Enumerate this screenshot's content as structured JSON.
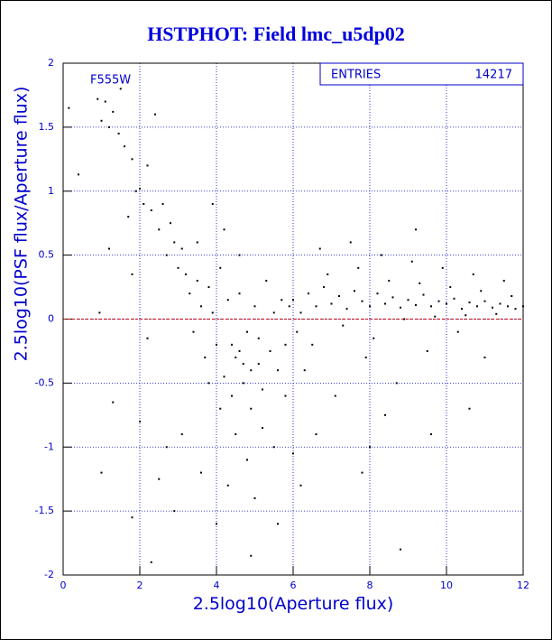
{
  "chart_data": {
    "type": "scatter",
    "title": "HSTPHOT: Field lmc_u5dp02",
    "xlabel": "2.5log10(Aperture flux)",
    "ylabel": "2.5log10(PSF flux/Aperture flux)",
    "annotation": "F555W",
    "stats": {
      "label": "ENTRIES",
      "value": 14217
    },
    "color": "#000000",
    "hline": 0,
    "hline_color": "#cc0000",
    "xlim": [
      0,
      12
    ],
    "ylim": [
      -2,
      2
    ],
    "xticks": [
      0,
      2,
      4,
      6,
      8,
      10,
      12
    ],
    "yticks": [
      -2,
      -1.5,
      -1,
      -0.5,
      0,
      0.5,
      1,
      1.5,
      2
    ],
    "grid": true,
    "x": [
      0.15,
      0.4,
      0.9,
      1.0,
      1.1,
      1.2,
      1.3,
      1.45,
      1.5,
      1.6,
      1.7,
      1.8,
      1.9,
      2.0,
      2.1,
      2.2,
      2.3,
      2.4,
      2.5,
      2.6,
      2.7,
      2.8,
      2.9,
      3.0,
      3.1,
      3.2,
      0.95,
      1.2,
      1.8,
      2.2,
      1.3,
      2.5,
      2.7,
      3.1,
      2.0,
      1.0,
      2.9,
      2.3,
      1.8,
      3.3,
      3.4,
      3.5,
      3.6,
      3.7,
      3.8,
      3.9,
      4.0,
      4.1,
      4.2,
      4.3,
      4.4,
      4.5,
      4.6,
      4.7,
      4.8,
      4.9,
      5.0,
      5.1,
      5.2,
      5.3,
      5.4,
      5.5,
      5.6,
      5.7,
      5.8,
      5.9,
      4.5,
      4.8,
      5.2,
      5.5,
      4.3,
      4.0,
      5.0,
      3.6,
      4.6,
      4.2,
      3.9,
      3.5,
      4.4,
      4.6,
      4.7,
      4.9,
      5.1,
      3.8,
      4.1,
      5.8,
      6.0,
      5.6,
      4.9,
      6.0,
      6.2,
      6.4,
      6.6,
      6.8,
      7.0,
      7.2,
      7.4,
      7.6,
      7.8,
      8.0,
      8.2,
      8.4,
      8.6,
      8.8,
      9.0,
      9.2,
      9.4,
      9.6,
      9.8,
      10.0,
      10.2,
      10.4,
      10.6,
      10.8,
      11.0,
      11.2,
      11.4,
      11.6,
      11.8,
      6.1,
      6.5,
      6.9,
      7.3,
      7.7,
      8.1,
      8.5,
      8.9,
      9.3,
      9.7,
      10.1,
      10.5,
      10.9,
      11.3,
      11.7,
      6.3,
      7.1,
      7.9,
      8.7,
      9.5,
      10.3,
      6.7,
      7.5,
      8.3,
      9.1,
      9.9,
      10.7,
      6.2,
      7.8,
      8.8,
      9.6,
      6.6,
      8.0,
      10.6,
      11.0,
      9.2,
      8.4,
      11.5,
      12.0
    ],
    "y": [
      1.65,
      1.13,
      1.72,
      1.55,
      1.7,
      1.5,
      1.62,
      1.45,
      1.8,
      1.35,
      0.8,
      1.25,
      1.0,
      1.02,
      0.9,
      1.2,
      0.85,
      1.6,
      0.7,
      0.9,
      0.5,
      0.75,
      0.6,
      0.4,
      0.55,
      0.35,
      0.05,
      0.55,
      0.35,
      -0.15,
      -0.65,
      -1.25,
      -1.0,
      -0.9,
      -0.8,
      -1.2,
      -1.5,
      -1.9,
      -1.55,
      0.2,
      -0.1,
      0.3,
      0.1,
      -0.3,
      0.25,
      0.05,
      -0.2,
      0.4,
      -0.45,
      0.15,
      -0.6,
      -0.3,
      0.2,
      -0.5,
      -0.1,
      -0.7,
      0.1,
      -0.35,
      -0.55,
      0.3,
      -0.25,
      0.05,
      -0.4,
      0.15,
      -0.2,
      0.1,
      -0.9,
      -1.1,
      -0.85,
      -1.0,
      -1.3,
      -1.6,
      -1.4,
      -1.2,
      0.5,
      0.7,
      0.9,
      0.6,
      -0.2,
      -0.25,
      -0.35,
      -0.4,
      -0.15,
      -0.5,
      -0.7,
      -0.6,
      -1.05,
      -1.6,
      -1.85,
      0.15,
      0.05,
      0.2,
      0.1,
      0.25,
      0.12,
      0.18,
      0.08,
      0.22,
      0.14,
      0.1,
      0.2,
      0.12,
      0.17,
      0.09,
      0.15,
      0.11,
      0.19,
      0.1,
      0.14,
      0.12,
      0.16,
      0.08,
      0.13,
      0.1,
      0.14,
      0.09,
      0.12,
      0.1,
      0.08,
      -0.1,
      -0.2,
      0.35,
      -0.05,
      0.4,
      -0.15,
      0.3,
      0.0,
      0.28,
      0.02,
      0.25,
      0.03,
      0.22,
      0.04,
      0.18,
      -0.4,
      -0.6,
      -0.3,
      -0.5,
      -0.25,
      -0.1,
      0.55,
      0.6,
      0.5,
      0.45,
      0.4,
      0.35,
      -1.3,
      -1.2,
      -1.8,
      -0.9,
      -0.9,
      -1.0,
      -0.7,
      -0.3,
      0.7,
      -0.75,
      0.3,
      0.1
    ]
  }
}
